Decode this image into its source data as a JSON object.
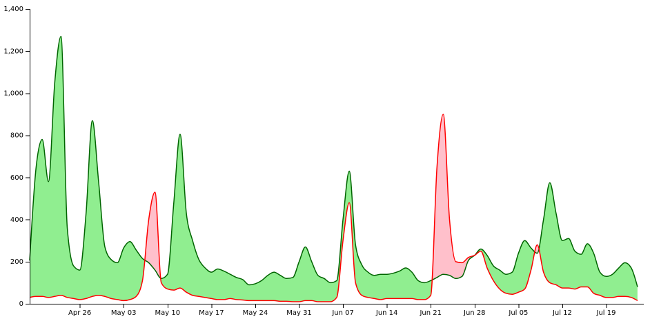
{
  "chart_data": {
    "type": "area",
    "title": "",
    "xlabel": "",
    "ylabel": "",
    "ylim": [
      0,
      1400
    ],
    "xlim": [
      "2020-04-18",
      "2020-07-25"
    ],
    "grid": false,
    "y_ticks": [
      "0",
      "200",
      "400",
      "600",
      "800",
      "1,000",
      "1,200",
      "1,400"
    ],
    "x_ticks": [
      {
        "date": "2020-04-26",
        "label": "Apr 26"
      },
      {
        "date": "2020-05-03",
        "label": "May 03"
      },
      {
        "date": "2020-05-10",
        "label": "May 10"
      },
      {
        "date": "2020-05-17",
        "label": "May 17"
      },
      {
        "date": "2020-05-24",
        "label": "May 24"
      },
      {
        "date": "2020-05-31",
        "label": "May 31"
      },
      {
        "date": "2020-06-07",
        "label": "Jun 07"
      },
      {
        "date": "2020-06-14",
        "label": "Jun 14"
      },
      {
        "date": "2020-06-21",
        "label": "Jun 21"
      },
      {
        "date": "2020-06-28",
        "label": "Jun 28"
      },
      {
        "date": "2020-07-05",
        "label": "Jul 05"
      },
      {
        "date": "2020-07-12",
        "label": "Jul 12"
      },
      {
        "date": "2020-07-19",
        "label": "Jul 19"
      }
    ],
    "colors": {
      "green_line": "#006400",
      "red_line": "#ff0000",
      "green_fill": "#90ee90",
      "red_fill": "#ffc0cb"
    },
    "series": [
      {
        "color": "#006400",
        "values": [
          [
            "2020-04-18",
            205
          ],
          [
            "2020-04-19",
            640
          ],
          [
            "2020-04-20",
            780
          ],
          [
            "2020-04-21",
            580
          ],
          [
            "2020-04-22",
            1050
          ],
          [
            "2020-04-23",
            1270
          ],
          [
            "2020-04-24",
            360
          ],
          [
            "2020-04-25",
            180
          ],
          [
            "2020-04-26",
            160
          ],
          [
            "2020-04-27",
            430
          ],
          [
            "2020-04-28",
            870
          ],
          [
            "2020-04-29",
            580
          ],
          [
            "2020-04-30",
            270
          ],
          [
            "2020-05-01",
            210
          ],
          [
            "2020-05-02",
            195
          ],
          [
            "2020-05-03",
            265
          ],
          [
            "2020-05-04",
            295
          ],
          [
            "2020-05-05",
            255
          ],
          [
            "2020-05-06",
            215
          ],
          [
            "2020-05-07",
            195
          ],
          [
            "2020-05-08",
            160
          ],
          [
            "2020-05-09",
            120
          ],
          [
            "2020-05-10",
            140
          ],
          [
            "2020-05-11",
            480
          ],
          [
            "2020-05-12",
            805
          ],
          [
            "2020-05-13",
            430
          ],
          [
            "2020-05-14",
            300
          ],
          [
            "2020-05-15",
            210
          ],
          [
            "2020-05-16",
            170
          ],
          [
            "2020-05-17",
            150
          ],
          [
            "2020-05-18",
            165
          ],
          [
            "2020-05-19",
            155
          ],
          [
            "2020-05-20",
            140
          ],
          [
            "2020-05-21",
            125
          ],
          [
            "2020-05-22",
            115
          ],
          [
            "2020-05-23",
            90
          ],
          [
            "2020-05-24",
            95
          ],
          [
            "2020-05-25",
            110
          ],
          [
            "2020-05-26",
            135
          ],
          [
            "2020-05-27",
            150
          ],
          [
            "2020-05-28",
            135
          ],
          [
            "2020-05-29",
            120
          ],
          [
            "2020-05-30",
            125
          ],
          [
            "2020-05-31",
            200
          ],
          [
            "2020-06-01",
            270
          ],
          [
            "2020-06-02",
            200
          ],
          [
            "2020-06-03",
            135
          ],
          [
            "2020-06-04",
            120
          ],
          [
            "2020-06-05",
            100
          ],
          [
            "2020-06-06",
            110
          ],
          [
            "2020-06-07",
            400
          ],
          [
            "2020-06-08",
            630
          ],
          [
            "2020-06-09",
            280
          ],
          [
            "2020-06-10",
            185
          ],
          [
            "2020-06-11",
            150
          ],
          [
            "2020-06-12",
            135
          ],
          [
            "2020-06-13",
            140
          ],
          [
            "2020-06-14",
            140
          ],
          [
            "2020-06-15",
            145
          ],
          [
            "2020-06-16",
            155
          ],
          [
            "2020-06-17",
            170
          ],
          [
            "2020-06-18",
            150
          ],
          [
            "2020-06-19",
            110
          ],
          [
            "2020-06-20",
            100
          ],
          [
            "2020-06-21",
            110
          ],
          [
            "2020-06-22",
            125
          ],
          [
            "2020-06-23",
            140
          ],
          [
            "2020-06-24",
            135
          ],
          [
            "2020-06-25",
            120
          ],
          [
            "2020-06-26",
            130
          ],
          [
            "2020-06-27",
            205
          ],
          [
            "2020-06-28",
            230
          ],
          [
            "2020-06-29",
            260
          ],
          [
            "2020-06-30",
            230
          ],
          [
            "2020-07-01",
            180
          ],
          [
            "2020-07-02",
            160
          ],
          [
            "2020-07-03",
            140
          ],
          [
            "2020-07-04",
            150
          ],
          [
            "2020-07-05",
            240
          ],
          [
            "2020-07-06",
            300
          ],
          [
            "2020-07-07",
            265
          ],
          [
            "2020-07-08",
            240
          ],
          [
            "2020-07-09",
            400
          ],
          [
            "2020-07-10",
            575
          ],
          [
            "2020-07-11",
            430
          ],
          [
            "2020-07-12",
            300
          ],
          [
            "2020-07-13",
            310
          ],
          [
            "2020-07-14",
            250
          ],
          [
            "2020-07-15",
            235
          ],
          [
            "2020-07-16",
            285
          ],
          [
            "2020-07-17",
            240
          ],
          [
            "2020-07-18",
            150
          ],
          [
            "2020-07-19",
            130
          ],
          [
            "2020-07-20",
            140
          ],
          [
            "2020-07-21",
            170
          ],
          [
            "2020-07-22",
            195
          ],
          [
            "2020-07-23",
            170
          ],
          [
            "2020-07-24",
            80
          ]
        ]
      },
      {
        "color": "#ff0000",
        "values": [
          [
            "2020-04-18",
            30
          ],
          [
            "2020-04-19",
            35
          ],
          [
            "2020-04-20",
            35
          ],
          [
            "2020-04-21",
            30
          ],
          [
            "2020-04-22",
            35
          ],
          [
            "2020-04-23",
            40
          ],
          [
            "2020-04-24",
            30
          ],
          [
            "2020-04-25",
            25
          ],
          [
            "2020-04-26",
            20
          ],
          [
            "2020-04-27",
            25
          ],
          [
            "2020-04-28",
            35
          ],
          [
            "2020-04-29",
            40
          ],
          [
            "2020-04-30",
            35
          ],
          [
            "2020-05-01",
            25
          ],
          [
            "2020-05-02",
            20
          ],
          [
            "2020-05-03",
            15
          ],
          [
            "2020-05-04",
            20
          ],
          [
            "2020-05-05",
            35
          ],
          [
            "2020-05-06",
            110
          ],
          [
            "2020-05-07",
            400
          ],
          [
            "2020-05-08",
            530
          ],
          [
            "2020-05-09",
            100
          ],
          [
            "2020-05-10",
            70
          ],
          [
            "2020-05-11",
            65
          ],
          [
            "2020-05-12",
            75
          ],
          [
            "2020-05-13",
            55
          ],
          [
            "2020-05-14",
            40
          ],
          [
            "2020-05-15",
            35
          ],
          [
            "2020-05-16",
            30
          ],
          [
            "2020-05-17",
            25
          ],
          [
            "2020-05-18",
            20
          ],
          [
            "2020-05-19",
            20
          ],
          [
            "2020-05-20",
            25
          ],
          [
            "2020-05-21",
            20
          ],
          [
            "2020-05-22",
            18
          ],
          [
            "2020-05-23",
            15
          ],
          [
            "2020-05-24",
            15
          ],
          [
            "2020-05-25",
            15
          ],
          [
            "2020-05-26",
            15
          ],
          [
            "2020-05-27",
            15
          ],
          [
            "2020-05-28",
            12
          ],
          [
            "2020-05-29",
            12
          ],
          [
            "2020-05-30",
            10
          ],
          [
            "2020-05-31",
            10
          ],
          [
            "2020-06-01",
            15
          ],
          [
            "2020-06-02",
            15
          ],
          [
            "2020-06-03",
            10
          ],
          [
            "2020-06-04",
            10
          ],
          [
            "2020-06-05",
            10
          ],
          [
            "2020-06-06",
            30
          ],
          [
            "2020-06-07",
            300
          ],
          [
            "2020-06-08",
            480
          ],
          [
            "2020-06-09",
            100
          ],
          [
            "2020-06-10",
            40
          ],
          [
            "2020-06-11",
            30
          ],
          [
            "2020-06-12",
            25
          ],
          [
            "2020-06-13",
            20
          ],
          [
            "2020-06-14",
            25
          ],
          [
            "2020-06-15",
            25
          ],
          [
            "2020-06-16",
            25
          ],
          [
            "2020-06-17",
            25
          ],
          [
            "2020-06-18",
            25
          ],
          [
            "2020-06-19",
            20
          ],
          [
            "2020-06-20",
            20
          ],
          [
            "2020-06-21",
            40
          ],
          [
            "2020-06-22",
            650
          ],
          [
            "2020-06-23",
            900
          ],
          [
            "2020-06-24",
            400
          ],
          [
            "2020-06-25",
            200
          ],
          [
            "2020-06-26",
            195
          ],
          [
            "2020-06-27",
            220
          ],
          [
            "2020-06-28",
            230
          ],
          [
            "2020-06-29",
            250
          ],
          [
            "2020-06-30",
            170
          ],
          [
            "2020-07-01",
            110
          ],
          [
            "2020-07-02",
            70
          ],
          [
            "2020-07-03",
            50
          ],
          [
            "2020-07-04",
            45
          ],
          [
            "2020-07-05",
            55
          ],
          [
            "2020-07-06",
            70
          ],
          [
            "2020-07-07",
            160
          ],
          [
            "2020-07-08",
            280
          ],
          [
            "2020-07-09",
            150
          ],
          [
            "2020-07-10",
            100
          ],
          [
            "2020-07-11",
            90
          ],
          [
            "2020-07-12",
            75
          ],
          [
            "2020-07-13",
            75
          ],
          [
            "2020-07-14",
            70
          ],
          [
            "2020-07-15",
            80
          ],
          [
            "2020-07-16",
            80
          ],
          [
            "2020-07-17",
            50
          ],
          [
            "2020-07-18",
            40
          ],
          [
            "2020-07-19",
            30
          ],
          [
            "2020-07-20",
            30
          ],
          [
            "2020-07-21",
            35
          ],
          [
            "2020-07-22",
            35
          ],
          [
            "2020-07-23",
            30
          ],
          [
            "2020-07-24",
            15
          ]
        ]
      }
    ]
  }
}
